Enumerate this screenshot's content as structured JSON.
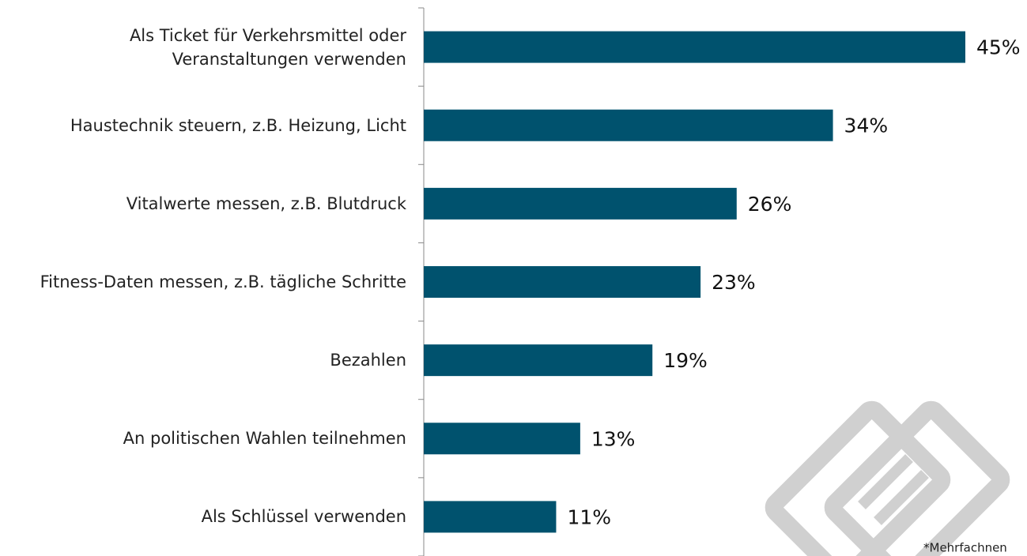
{
  "chart_data": {
    "type": "bar",
    "orientation": "horizontal",
    "categories": [
      "Als Ticket für Verkehrsmittel oder\nVeranstaltungen verwenden",
      "Haustechnik steuern, z.B. Heizung, Licht",
      "Vitalwerte messen, z.B. Blutdruck",
      "Fitness-Daten messen, z.B. tägliche Schritte",
      "Bezahlen",
      "An politischen Wahlen teilnehmen",
      "Als Schlüssel verwenden"
    ],
    "values": [
      45,
      34,
      26,
      23,
      19,
      13,
      11
    ],
    "value_labels": [
      "45%",
      "34%",
      "26%",
      "23%",
      "19%",
      "13%",
      "11%"
    ],
    "color": "#00526e",
    "footnote": "*Mehrfachnen"
  }
}
